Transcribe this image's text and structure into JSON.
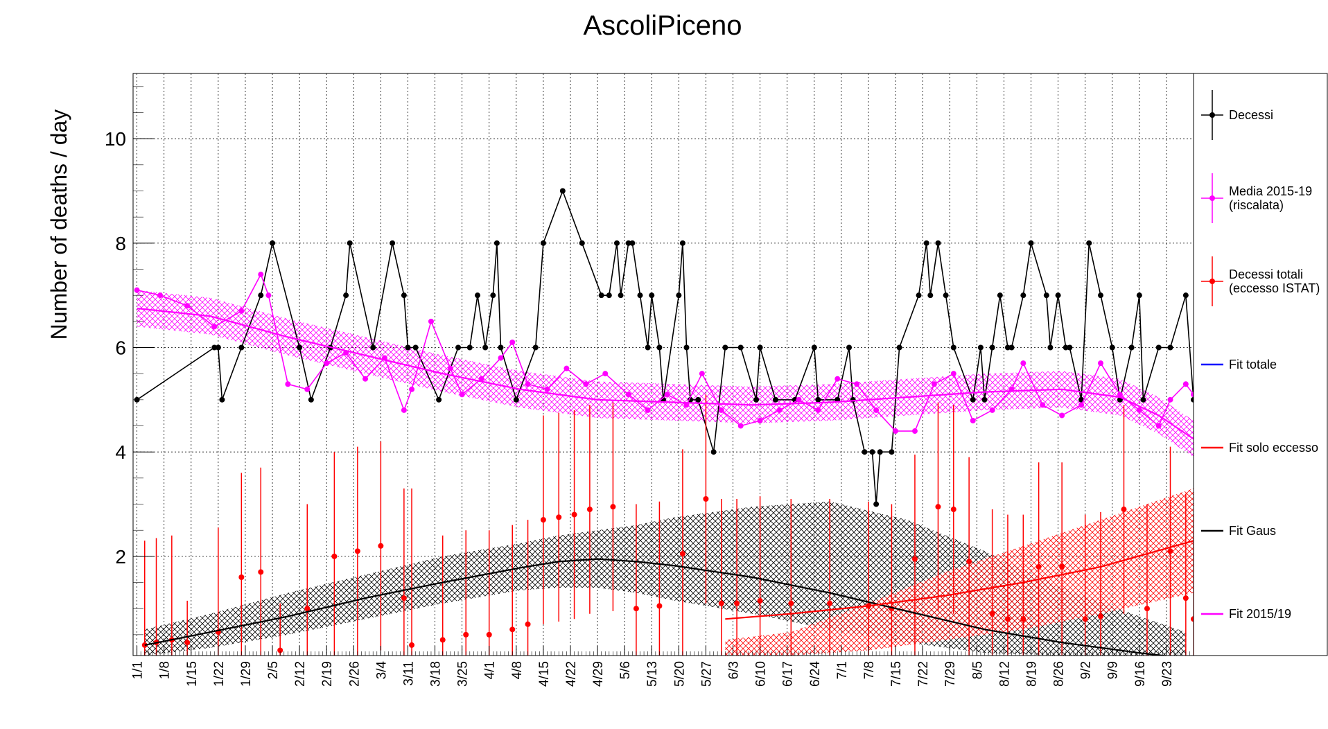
{
  "chart_data": {
    "type": "line",
    "title": "AscoliPiceno",
    "ylabel": "Number of deaths / day",
    "xlabel": "",
    "xlim": [
      0,
      274
    ],
    "ylim": [
      0.1,
      11.25
    ],
    "yticks": [
      2,
      4,
      6,
      8,
      10
    ],
    "xtick_labels": [
      "1/1",
      "1/8",
      "1/15",
      "1/22",
      "1/29",
      "2/5",
      "2/12",
      "2/19",
      "2/26",
      "3/4",
      "3/11",
      "3/18",
      "3/25",
      "4/1",
      "4/8",
      "4/15",
      "4/22",
      "4/29",
      "5/6",
      "5/13",
      "5/20",
      "5/27",
      "6/3",
      "6/10",
      "6/17",
      "6/24",
      "7/1",
      "7/8",
      "7/15",
      "7/22",
      "7/29",
      "8/5",
      "8/12",
      "8/19",
      "8/26",
      "9/2",
      "9/9",
      "9/16",
      "9/23"
    ],
    "grid": true,
    "legend_position": "right",
    "colors": {
      "decessi": "#000000",
      "media": "#ff00ff",
      "istat": "#ff0000",
      "fit_totale": "#0000ff",
      "fit_eccesso": "#ff0000",
      "fit_gaus": "#000000",
      "fit_2015": "#ff00ff"
    },
    "legend": [
      {
        "key": "decessi",
        "label": "Decessi",
        "kind": "marker"
      },
      {
        "key": "media",
        "label": "Media 2015-19\n(riscalata)",
        "kind": "marker"
      },
      {
        "key": "istat",
        "label": "Decessi totali\n(eccesso ISTAT)",
        "kind": "marker"
      },
      {
        "key": "fit_totale",
        "label": "Fit totale",
        "kind": "line"
      },
      {
        "key": "fit_eccesso",
        "label": "Fit solo eccesso",
        "kind": "line"
      },
      {
        "key": "fit_gaus",
        "label": "Fit Gaus",
        "kind": "line"
      },
      {
        "key": "fit_2015",
        "label": "Fit 2015/19",
        "kind": "line"
      }
    ],
    "series": [
      {
        "key": "decessi",
        "name": "Decessi",
        "x": [
          1,
          21,
          22,
          23,
          28,
          33,
          36,
          43,
          46,
          51,
          55,
          56,
          62,
          67,
          70,
          71,
          73,
          79,
          84,
          87,
          89,
          91,
          93,
          94,
          95,
          99,
          104,
          106,
          111,
          116,
          121,
          123,
          125,
          126,
          128,
          129,
          131,
          133,
          134,
          136,
          137,
          141,
          142,
          143,
          144,
          146,
          150,
          153,
          157,
          161,
          162,
          166,
          171,
          176,
          177,
          182,
          185,
          186,
          189,
          191,
          192,
          193,
          196,
          198,
          203,
          205,
          206,
          208,
          210,
          212,
          217,
          219,
          220,
          222,
          224,
          226,
          227,
          230,
          232,
          236,
          237,
          239,
          241,
          242,
          245,
          247,
          250,
          253,
          255,
          258,
          260,
          261,
          265,
          268,
          272,
          274
        ],
        "values": [
          5,
          6,
          6,
          5,
          6,
          7,
          8,
          6,
          5,
          6,
          7,
          8,
          6,
          8,
          7,
          6,
          6,
          5,
          6,
          6,
          7,
          6,
          7,
          8,
          6,
          5,
          6,
          8,
          9,
          8,
          7,
          7,
          8,
          7,
          8,
          8,
          7,
          6,
          7,
          6,
          5,
          7,
          8,
          6,
          5,
          5,
          4,
          6,
          6,
          5,
          6,
          5,
          5,
          6,
          5,
          5,
          6,
          5,
          4,
          4,
          3,
          4,
          4,
          6,
          7,
          8,
          7,
          8,
          7,
          6,
          5,
          6,
          5,
          6,
          7,
          6,
          6,
          7,
          8,
          7,
          6,
          7,
          6,
          6,
          5,
          8,
          7,
          6,
          5,
          6,
          7,
          5,
          6,
          6,
          7,
          5
        ]
      },
      {
        "key": "media",
        "name": "Media 2015-19 (riscalata)",
        "x": [
          1,
          7,
          14,
          21,
          28,
          33,
          35,
          40,
          45,
          50,
          55,
          60,
          65,
          70,
          72,
          77,
          82,
          85,
          90,
          95,
          98,
          102,
          107,
          112,
          117,
          122,
          128,
          133,
          138,
          143,
          147,
          152,
          157,
          162,
          167,
          172,
          177,
          182,
          187,
          192,
          197,
          202,
          207,
          212,
          217,
          222,
          227,
          230,
          235,
          240,
          245,
          250,
          255,
          260,
          265,
          268,
          272,
          274
        ],
        "values": [
          7.1,
          7.0,
          6.8,
          6.4,
          6.7,
          7.4,
          7.0,
          5.3,
          5.2,
          5.7,
          5.9,
          5.4,
          5.8,
          4.8,
          5.2,
          6.5,
          5.6,
          5.1,
          5.4,
          5.8,
          6.1,
          5.3,
          5.2,
          5.6,
          5.3,
          5.5,
          5.1,
          4.8,
          5.1,
          4.9,
          5.5,
          4.8,
          4.5,
          4.6,
          4.8,
          5.0,
          4.8,
          5.4,
          5.3,
          4.8,
          4.4,
          4.4,
          5.3,
          5.5,
          4.6,
          4.8,
          5.2,
          5.7,
          4.9,
          4.7,
          4.9,
          5.7,
          5.1,
          4.8,
          4.5,
          5.0,
          5.3,
          5.1
        ]
      },
      {
        "key": "istat",
        "name": "Decessi totali (eccesso ISTAT)",
        "x": [
          3,
          6,
          10,
          14,
          22,
          28,
          33,
          38,
          45,
          52,
          58,
          64,
          70,
          72,
          80,
          86,
          92,
          98,
          102,
          106,
          110,
          114,
          118,
          124,
          130,
          136,
          142,
          148,
          152,
          156,
          162,
          170,
          180,
          190,
          196,
          202,
          208,
          212,
          216,
          222,
          226,
          230,
          234,
          240,
          246,
          250,
          256,
          262,
          268,
          272,
          274
        ],
        "values": [
          0.3,
          0.35,
          0.4,
          0.35,
          0.55,
          1.6,
          1.7,
          0.2,
          1.0,
          2.0,
          2.1,
          2.2,
          1.2,
          0.3,
          0.4,
          0.5,
          0.5,
          0.6,
          0.7,
          2.7,
          2.75,
          2.8,
          2.9,
          2.95,
          1.0,
          1.05,
          2.05,
          3.1,
          1.1,
          1.1,
          1.15,
          1.1,
          1.1,
          1.05,
          1.0,
          1.95,
          2.95,
          2.9,
          1.9,
          0.9,
          0.8,
          0.8,
          1.8,
          1.8,
          0.8,
          0.85,
          2.9,
          1.0,
          2.1,
          1.2,
          0.8
        ],
        "err": [
          2.0,
          2.0,
          2.0,
          0.8,
          2.0,
          2.0,
          2.0,
          0.9,
          2.0,
          2.0,
          2.0,
          2.0,
          2.1,
          3.0,
          2.0,
          2.0,
          2.0,
          2.0,
          2.0,
          2.0,
          2.0,
          2.0,
          2.0,
          2.0,
          2.0,
          2.0,
          2.0,
          2.0,
          2.0,
          2.0,
          2.0,
          2.0,
          2.0,
          2.0,
          2.0,
          2.0,
          2.0,
          2.0,
          2.0,
          2.0,
          2.0,
          2.0,
          2.0,
          2.0,
          2.0,
          2.0,
          2.0,
          2.0,
          2.0,
          2.0,
          2.0
        ]
      }
    ],
    "fits": [
      {
        "key": "fit_2015",
        "name": "Fit 2015/19",
        "x": [
          1,
          20,
          40,
          60,
          80,
          100,
          120,
          140,
          160,
          180,
          200,
          220,
          240,
          255,
          265,
          274
        ],
        "values": [
          6.75,
          6.6,
          6.2,
          5.85,
          5.5,
          5.2,
          5.0,
          4.95,
          4.9,
          4.95,
          5.05,
          5.15,
          5.2,
          5.05,
          4.7,
          4.25
        ],
        "band": 0.35
      },
      {
        "key": "fit_gaus",
        "name": "Fit Gaus",
        "x": [
          3,
          20,
          40,
          60,
          80,
          100,
          110,
          120,
          130,
          140,
          160,
          180,
          200,
          220,
          240,
          260,
          272
        ],
        "values": [
          0.3,
          0.55,
          0.85,
          1.2,
          1.5,
          1.78,
          1.9,
          1.95,
          1.9,
          1.82,
          1.6,
          1.3,
          0.95,
          0.6,
          0.35,
          0.15,
          0.05
        ],
        "band_low": [
          0.1,
          0.25,
          0.5,
          0.8,
          1.1,
          1.35,
          1.4,
          1.4,
          1.3,
          1.15,
          0.9,
          0.6,
          0.35,
          0.15,
          0.05,
          0.0,
          0.0
        ],
        "band_high": [
          0.6,
          0.9,
          1.3,
          1.65,
          2.0,
          2.25,
          2.4,
          2.5,
          2.6,
          2.75,
          2.95,
          3.05,
          2.7,
          2.1,
          1.4,
          0.85,
          0.55
        ]
      },
      {
        "key": "fit_eccesso",
        "name": "Fit solo eccesso",
        "x": [
          153,
          170,
          190,
          210,
          230,
          250,
          274
        ],
        "values": [
          0.8,
          0.9,
          1.05,
          1.25,
          1.5,
          1.8,
          2.3
        ],
        "band_low": [
          0.0,
          0.1,
          0.2,
          0.4,
          0.6,
          0.9,
          1.3
        ],
        "band_high": [
          0.4,
          0.55,
          1.1,
          1.7,
          2.2,
          2.7,
          3.3
        ]
      }
    ]
  }
}
